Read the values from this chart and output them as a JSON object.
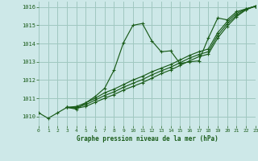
{
  "title": "Graphe pression niveau de la mer (hPa)",
  "bg_color": "#cde8e8",
  "plot_bg_color": "#cde8e8",
  "grid_color": "#a0c8c0",
  "line_color": "#1a5c1a",
  "xlim": [
    0,
    23
  ],
  "ylim": [
    1009.5,
    1016.3
  ],
  "yticks": [
    1010,
    1011,
    1012,
    1013,
    1014,
    1015,
    1016
  ],
  "xticks": [
    0,
    1,
    2,
    3,
    4,
    5,
    6,
    7,
    8,
    9,
    10,
    11,
    12,
    13,
    14,
    15,
    16,
    17,
    18,
    19,
    20,
    21,
    22,
    23
  ],
  "series": [
    {
      "x": [
        0,
        1,
        2,
        3,
        4,
        5,
        6,
        7,
        8,
        9,
        10,
        11,
        12,
        13,
        14,
        15,
        16,
        17,
        18,
        19,
        20,
        21,
        22,
        23
      ],
      "y": [
        1010.2,
        1009.9,
        1010.2,
        1010.5,
        1010.4,
        1010.75,
        1011.1,
        1011.55,
        1012.55,
        1014.05,
        1015.0,
        1015.1,
        1014.15,
        1013.55,
        1013.6,
        1012.9,
        1013.0,
        1013.05,
        1014.3,
        1015.4,
        1015.3,
        1015.75,
        1015.9,
        1016.05
      ]
    },
    {
      "x": [
        3,
        4,
        5,
        6,
        7,
        8,
        9,
        10,
        11,
        12,
        13,
        14,
        15,
        16,
        17,
        18,
        19,
        20,
        21,
        22,
        23
      ],
      "y": [
        1010.5,
        1010.55,
        1010.75,
        1011.0,
        1011.3,
        1011.5,
        1011.75,
        1012.0,
        1012.2,
        1012.45,
        1012.65,
        1012.85,
        1013.1,
        1013.35,
        1013.55,
        1013.7,
        1014.6,
        1015.2,
        1015.65,
        1015.9,
        1016.05
      ]
    },
    {
      "x": [
        3,
        4,
        5,
        6,
        7,
        8,
        9,
        10,
        11,
        12,
        13,
        14,
        15,
        16,
        17,
        18,
        19,
        20,
        21,
        22,
        23
      ],
      "y": [
        1010.5,
        1010.5,
        1010.65,
        1010.9,
        1011.15,
        1011.35,
        1011.6,
        1011.82,
        1012.02,
        1012.28,
        1012.5,
        1012.7,
        1012.95,
        1013.2,
        1013.4,
        1013.55,
        1014.45,
        1015.08,
        1015.55,
        1015.88,
        1016.05
      ]
    },
    {
      "x": [
        3,
        4,
        5,
        6,
        7,
        8,
        9,
        10,
        11,
        12,
        13,
        14,
        15,
        16,
        17,
        18,
        19,
        20,
        21,
        22,
        23
      ],
      "y": [
        1010.5,
        1010.45,
        1010.55,
        1010.78,
        1011.0,
        1011.2,
        1011.45,
        1011.65,
        1011.85,
        1012.1,
        1012.35,
        1012.55,
        1012.8,
        1013.05,
        1013.28,
        1013.42,
        1014.3,
        1014.95,
        1015.48,
        1015.85,
        1016.05
      ]
    }
  ]
}
